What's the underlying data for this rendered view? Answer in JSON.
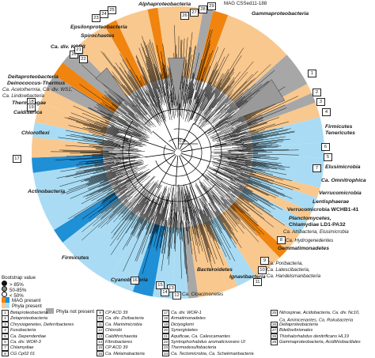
{
  "colors": {
    "mag_present": "#f0840f",
    "mag_present_blue": "#1f8fd6",
    "phyla_present_orange": "#f9c88e",
    "phyla_present_blue": "#a9dcf4",
    "phyla_not_present": "#a7a7a7",
    "branches": "#000000"
  },
  "scale_label": "0.4",
  "clade_labels": [
    {
      "text": "MAG CSSed11-188",
      "italic": false
    },
    {
      "text": "Alphaproteobacteria",
      "italic": true
    },
    {
      "text": "Gammaproteobacteria",
      "italic": true
    },
    {
      "text": "Epsilonproteobacteria",
      "italic": true
    },
    {
      "text": "Spirochaetes",
      "italic": true
    },
    {
      "text": "Ca. div. KSB3",
      "italic": true
    },
    {
      "text": "Deltaproteobacteria",
      "italic": true
    },
    {
      "text": "Deinococcus-Thermus",
      "italic": true
    },
    {
      "text": "Ca. Acetothermia, Ca. div. WS1,",
      "italic": true
    },
    {
      "text": "Ca. Lindowbacteria",
      "italic": true
    },
    {
      "text": "Thermotogae",
      "italic": true
    },
    {
      "text": "Caldiserica",
      "italic": true
    },
    {
      "text": "Chloroflexi",
      "italic": true
    },
    {
      "text": "Firmicutes",
      "italic": true
    },
    {
      "text": "Tenericutes",
      "italic": true
    },
    {
      "text": "Elusimicrobia",
      "italic": true
    },
    {
      "text": "Ca. Omnitrophica",
      "italic": true
    },
    {
      "text": "Verrucomicrobia",
      "italic": true
    },
    {
      "text": "Lentisphaerae",
      "italic": true
    },
    {
      "text": "Verrucomicrobia WCHB1-41",
      "italic": false
    },
    {
      "text": "Planctomycetes,",
      "italic": true
    },
    {
      "text": "Chlamydiae LD1-PA32",
      "italic": false
    },
    {
      "text": "Ca. Atribacteria, Elusimicrobia",
      "italic": true
    },
    {
      "text": "Ca. Hydrogenedentes",
      "italic": true
    },
    {
      "text": "Gemmatimonadetes",
      "italic": true
    },
    {
      "text": "Ca. Poribacteria,",
      "italic": true
    },
    {
      "text": "Ca. Latescibacteria,",
      "italic": true
    },
    {
      "text": "Ca. Handelsmanbacteria",
      "italic": true
    },
    {
      "text": "Ignavibacteria",
      "italic": true
    },
    {
      "text": "Bacteroidetes",
      "italic": true
    },
    {
      "text": "Ca. Cloacimonetes",
      "italic": true
    },
    {
      "text": "Cyanobacteria",
      "italic": true
    },
    {
      "text": "Firmicutes",
      "italic": true
    },
    {
      "text": "Actinobacteria",
      "italic": true
    }
  ],
  "number_boxes": [
    "26",
    "27",
    "28",
    "29",
    "1",
    "2",
    "3",
    "4",
    "5",
    "6",
    "7",
    "8",
    "9",
    "10",
    "11",
    "12",
    "13",
    "14",
    "15",
    "16",
    "17",
    "18",
    "19",
    "20",
    "21",
    "22",
    "23",
    "24",
    "25"
  ],
  "legend": {
    "bootstrap_title": "Bootstrap value",
    "bootstrap_items": [
      "> 85%",
      "50-85%",
      "< 50%"
    ],
    "mag_present": "MAG present",
    "phyla_present": "Phyla present",
    "phyla_not_present": "Phyla not present"
  },
  "key_columns": [
    [
      {
        "n": "1",
        "text": "Betaproteobacteria"
      },
      {
        "n": "2",
        "text": "Zetaproteobacteria"
      },
      {
        "n": "3",
        "text": "Chrysiogenetes, Deferribacteres"
      },
      {
        "n": "4",
        "text": "Fusobacteria"
      },
      {
        "n": "5",
        "text": "Ca. Dependentiae"
      },
      {
        "n": "6",
        "text": "Ca. div. WOR-3"
      },
      {
        "n": "7",
        "text": "Chlamydiae"
      },
      {
        "n": "8",
        "text": "CG Cp02 01"
      }
    ],
    [
      {
        "n": "9",
        "text": "CP ACD 39"
      },
      {
        "n": "10",
        "text": "Ca. div. Zixibacteria"
      },
      {
        "n": "11",
        "text": "Ca. Marinimicrobia"
      },
      {
        "n": "12",
        "text": "Chlorobi"
      },
      {
        "n": "13",
        "text": "Caldithrichaeota"
      },
      {
        "n": "14",
        "text": "Fibrobacteres"
      },
      {
        "n": "15",
        "text": "CP ACD 39"
      },
      {
        "n": "16",
        "text": "Ca. Melainabacteria"
      }
    ],
    [
      {
        "n": "17",
        "text": "Ca. div. WOR-1"
      },
      {
        "n": "18",
        "text": "Armatimonadetes"
      },
      {
        "n": "19",
        "text": "Dictyoglomi"
      },
      {
        "n": "20",
        "text": "Synergistetes"
      },
      {
        "n": "21",
        "text": "Aquificae, Ca. Calescamantes"
      },
      {
        "n": "22",
        "text": "Syntrophorhabdus aromaticivorans UI"
      },
      {
        "n": "23",
        "text": "Thermodesulfobacteria"
      },
      {
        "n": "24",
        "text": "Ca. Tectomicrobia, Ca. Schekmanbacteria"
      }
    ],
    [
      {
        "n": "25",
        "text": "Nitrospirae, Acidobacteria, Ca. div. Nc10,"
      },
      {
        "n": "",
        "text": "Ca. Aminicenantes, Ca. Rokubacteria"
      },
      {
        "n": "26",
        "text": "Deltaproteobacteria"
      },
      {
        "n": "27",
        "text": "Bdellovibrionales"
      },
      {
        "n": "28",
        "text": "Thiohalorhabdus denitrificans HL19"
      },
      {
        "n": "29",
        "text": "Gammaproteobacteria, Acidithiobacillales"
      }
    ]
  ]
}
